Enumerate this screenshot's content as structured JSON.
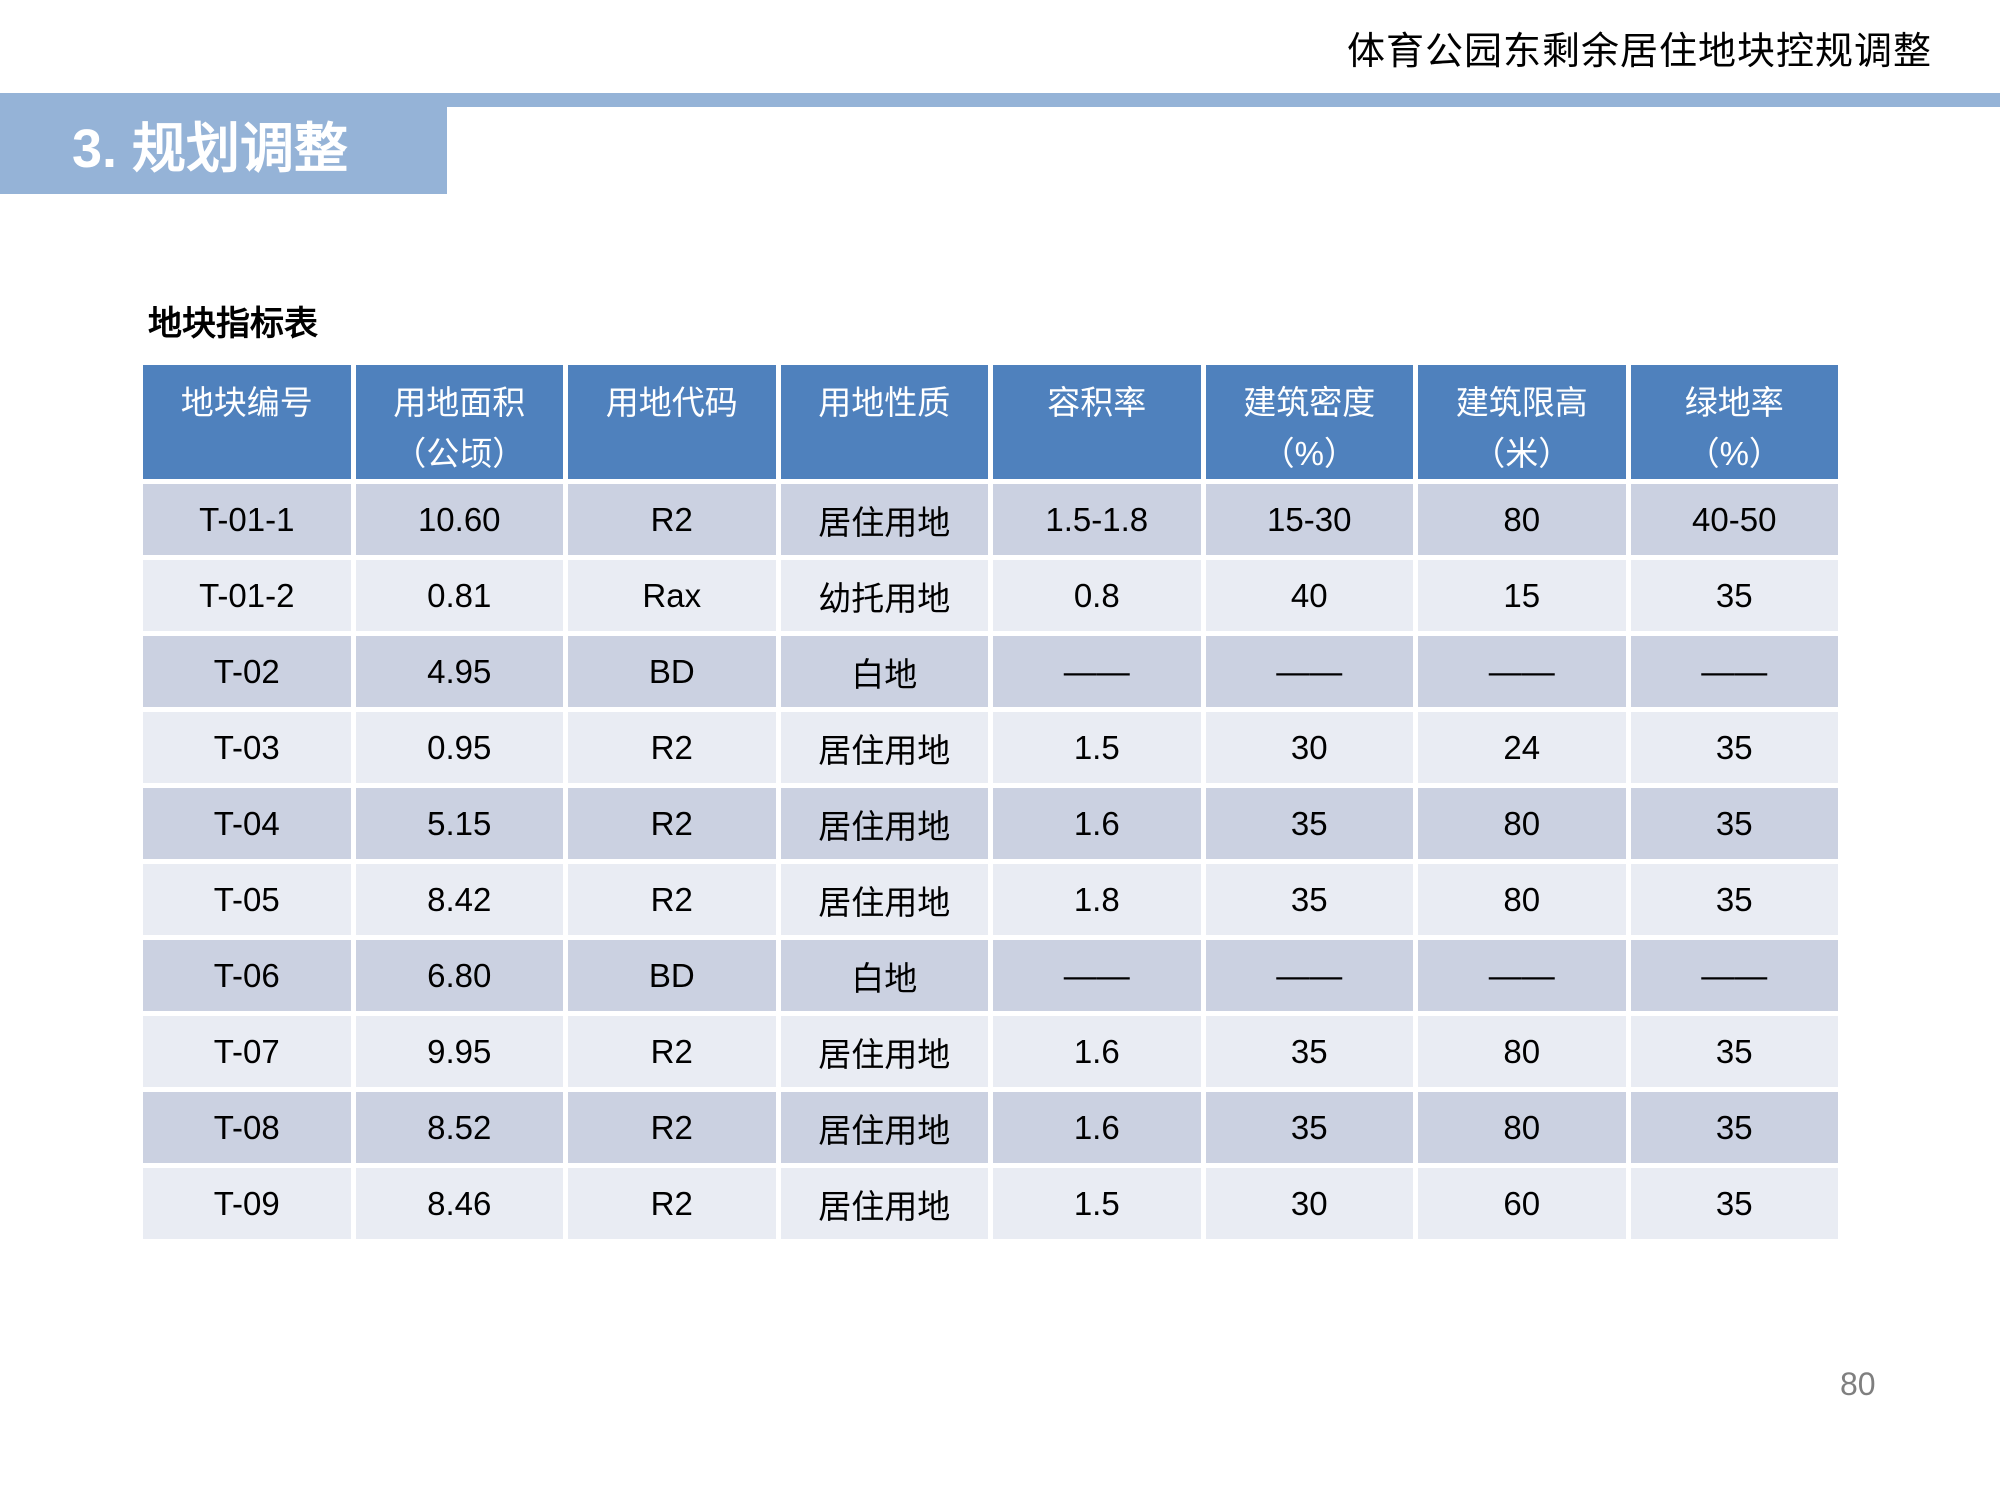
{
  "page": {
    "header_title": "体育公园东剩余居住地块控规调整",
    "section_title": "3. 规划调整",
    "table_title": "地块指标表",
    "page_number": "80"
  },
  "colors": {
    "header_blue": "#4f81bd",
    "banner_blue": "#95b3d7",
    "band_dark": "#cbd1e1",
    "band_light": "#e9ecf3",
    "page_number_gray": "#7f7f7f"
  },
  "table": {
    "columns": [
      {
        "label": "地块编号",
        "sub": ""
      },
      {
        "label": "用地面积",
        "sub": "（公顷）"
      },
      {
        "label": "用地代码",
        "sub": ""
      },
      {
        "label": "用地性质",
        "sub": ""
      },
      {
        "label": "容积率",
        "sub": ""
      },
      {
        "label": "建筑密度",
        "sub": "（%）"
      },
      {
        "label": "建筑限高",
        "sub": "（米）"
      },
      {
        "label": "绿地率",
        "sub": "（%）"
      }
    ],
    "rows": [
      [
        "T-01-1",
        "10.60",
        "R2",
        "居住用地",
        "1.5-1.8",
        "15-30",
        "80",
        "40-50"
      ],
      [
        "T-01-2",
        "0.81",
        "Rax",
        "幼托用地",
        "0.8",
        "40",
        "15",
        "35"
      ],
      [
        "T-02",
        "4.95",
        "BD",
        "白地",
        "——",
        "——",
        "——",
        "——"
      ],
      [
        "T-03",
        "0.95",
        "R2",
        "居住用地",
        "1.5",
        "30",
        "24",
        "35"
      ],
      [
        "T-04",
        "5.15",
        "R2",
        "居住用地",
        "1.6",
        "35",
        "80",
        "35"
      ],
      [
        "T-05",
        "8.42",
        "R2",
        "居住用地",
        "1.8",
        "35",
        "80",
        "35"
      ],
      [
        "T-06",
        "6.80",
        "BD",
        "白地",
        "——",
        "——",
        "——",
        "——"
      ],
      [
        "T-07",
        "9.95",
        "R2",
        "居住用地",
        "1.6",
        "35",
        "80",
        "35"
      ],
      [
        "T-08",
        "8.52",
        "R2",
        "居住用地",
        "1.6",
        "35",
        "80",
        "35"
      ],
      [
        "T-09",
        "8.46",
        "R2",
        "居住用地",
        "1.5",
        "30",
        "60",
        "35"
      ]
    ]
  }
}
